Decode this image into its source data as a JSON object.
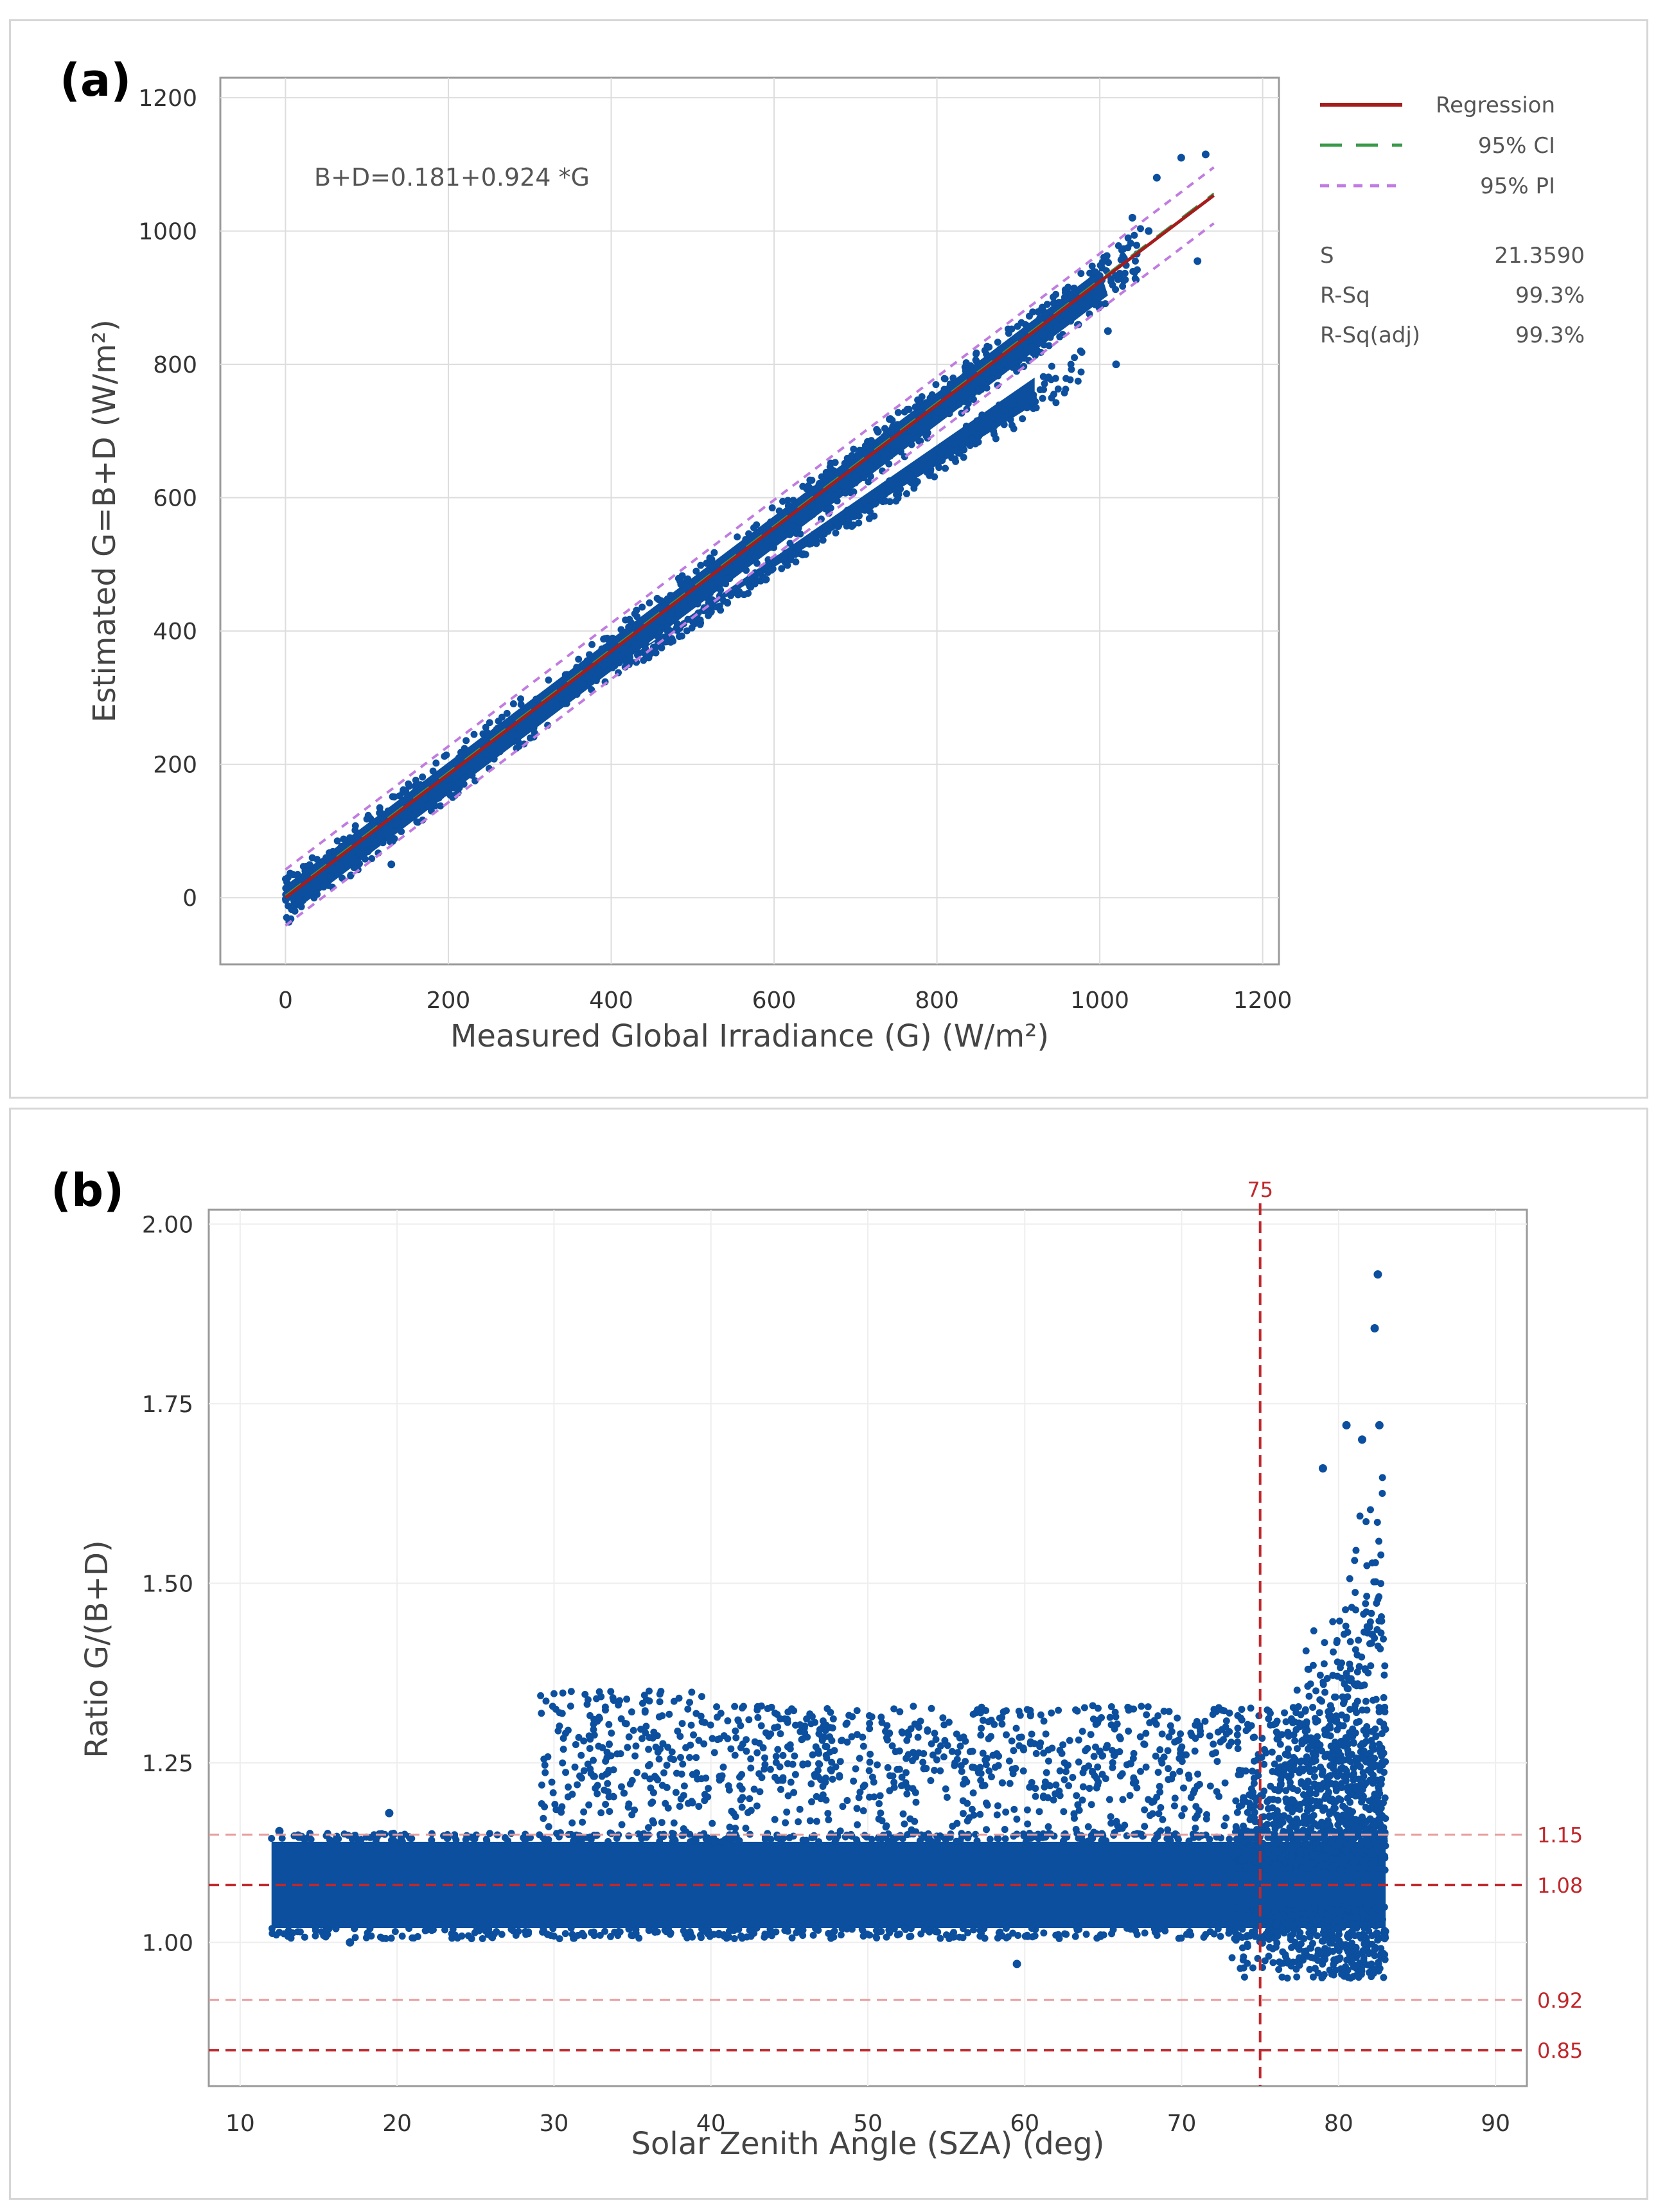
{
  "colors": {
    "points": "#0b4f9e",
    "regression": "#a51c1c",
    "ci": "#3b9a4a",
    "pi": "#c07ce0",
    "refline": "#c0282c",
    "grid": "#dddddd",
    "axis": "#9a9a9a"
  },
  "chart_data": [
    {
      "panel_label": "(a)",
      "type": "scatter",
      "xlabel": "Measured Global Irradiance (G) (W/m²)",
      "ylabel": "Estimated G=B+D (W/m²)",
      "xlim": [
        -80,
        1220
      ],
      "ylim": [
        -100,
        1230
      ],
      "xticks": [
        0,
        200,
        400,
        600,
        800,
        1000,
        1200
      ],
      "yticks": [
        0,
        200,
        400,
        600,
        800,
        1000,
        1200
      ],
      "equation": "B+D=0.181+0.924 *G",
      "regression": {
        "intercept": 0.181,
        "slope": 0.924,
        "x_range": [
          0,
          1140
        ]
      },
      "ci_halfwidth": 3,
      "pi_halfwidth": 42,
      "legend": [
        {
          "label": "Regression",
          "style": "solid"
        },
        {
          "label": "95% CI",
          "style": "dashed"
        },
        {
          "label": "95% PI",
          "style": "dotted"
        }
      ],
      "stats": [
        {
          "label": "S",
          "value": "21.3590"
        },
        {
          "label": "R-Sq",
          "value": "99.3%"
        },
        {
          "label": "R-Sq(adj)",
          "value": "99.3%"
        }
      ],
      "main_band": {
        "x_range": [
          0,
          1010
        ],
        "upper_offset": 18,
        "lower_offset": -30
      },
      "secondary_band": {
        "x_range": [
          420,
          920
        ],
        "upper_rel_slope": -0.08,
        "lower_rel_slope": -0.16
      },
      "outliers": [
        {
          "x": 1100,
          "y": 1110
        },
        {
          "x": 1130,
          "y": 1115
        },
        {
          "x": 1120,
          "y": 955
        },
        {
          "x": 1020,
          "y": 800
        },
        {
          "x": 1010,
          "y": 850
        },
        {
          "x": 1070,
          "y": 1080
        },
        {
          "x": 130,
          "y": 50
        },
        {
          "x": 1060,
          "y": 1000
        },
        {
          "x": 1040,
          "y": 1020
        }
      ]
    },
    {
      "panel_label": "(b)",
      "type": "scatter",
      "xlabel": "Solar Zenith Angle (SZA) (deg)",
      "ylabel": "Ratio G/(B+D)",
      "xlim": [
        8,
        92
      ],
      "ylim": [
        0.8,
        2.02
      ],
      "xticks": [
        10,
        20,
        30,
        40,
        50,
        60,
        70,
        80,
        90
      ],
      "yticks": [
        1.0,
        1.25,
        1.5,
        1.75,
        2.0
      ],
      "ytick_labels": [
        "1.00",
        "1.25",
        "1.50",
        "1.75",
        "2.00"
      ],
      "reference_lines": [
        {
          "orientation": "vertical",
          "value": 75,
          "label": "75"
        },
        {
          "orientation": "horizontal",
          "value": 1.15,
          "label": "1.15"
        },
        {
          "orientation": "horizontal",
          "value": 1.08,
          "label": "1.08"
        },
        {
          "orientation": "horizontal",
          "value": 0.92,
          "label": "0.92"
        },
        {
          "orientation": "horizontal",
          "value": 0.85,
          "label": "0.85"
        }
      ],
      "main_band": {
        "x_range": [
          12,
          83
        ],
        "y_range": [
          1.02,
          1.14
        ]
      },
      "upper_cluster": {
        "x_range": [
          29,
          83
        ],
        "y_range": [
          1.15,
          1.35
        ]
      },
      "high_sza_spread": {
        "x_range": [
          73,
          83
        ],
        "y_range": [
          0.95,
          1.72
        ]
      },
      "outliers": [
        {
          "x": 82.5,
          "y": 1.93
        },
        {
          "x": 82.3,
          "y": 1.855
        },
        {
          "x": 82.6,
          "y": 1.72
        },
        {
          "x": 80.5,
          "y": 1.72
        },
        {
          "x": 81.5,
          "y": 1.7
        },
        {
          "x": 79.0,
          "y": 1.66
        },
        {
          "x": 19.5,
          "y": 1.18
        },
        {
          "x": 12.5,
          "y": 1.155
        },
        {
          "x": 59.5,
          "y": 0.97
        },
        {
          "x": 17.0,
          "y": 1.0
        }
      ]
    }
  ]
}
